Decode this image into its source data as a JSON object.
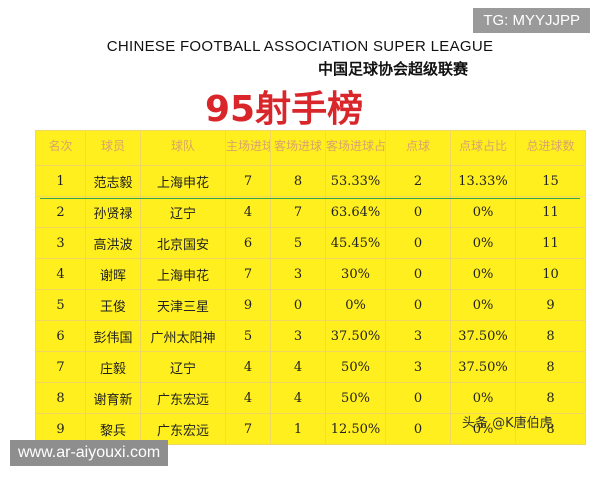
{
  "watermark_top": "TG: MYYJJPP",
  "header": {
    "subtitle_en": "CHINESE FOOTBALL ASSOCIATION SUPER LEAGUE",
    "subtitle_cn": "中国足球协会超级联赛",
    "title": "95射手榜"
  },
  "table": {
    "header": [
      "名次",
      "球员",
      "球队",
      "主场进球",
      "客场进球",
      "客场进球占比",
      "点球",
      "点球占比",
      "总进球数"
    ],
    "rows": [
      [
        "1",
        "范志毅",
        "上海申花",
        "7",
        "8",
        "53.33%",
        "2",
        "13.33%",
        "15"
      ],
      [
        "2",
        "孙贤禄",
        "辽宁",
        "4",
        "7",
        "63.64%",
        "0",
        "0%",
        "11"
      ],
      [
        "3",
        "高洪波",
        "北京国安",
        "6",
        "5",
        "45.45%",
        "0",
        "0%",
        "11"
      ],
      [
        "4",
        "谢晖",
        "上海申花",
        "7",
        "3",
        "30%",
        "0",
        "0%",
        "10"
      ],
      [
        "5",
        "王俊",
        "天津三星",
        "9",
        "0",
        "0%",
        "0",
        "0%",
        "9"
      ],
      [
        "6",
        "彭伟国",
        "广州太阳神",
        "5",
        "3",
        "37.50%",
        "3",
        "37.50%",
        "8"
      ],
      [
        "7",
        "庄毅",
        "辽宁",
        "4",
        "4",
        "50%",
        "3",
        "37.50%",
        "8"
      ],
      [
        "8",
        "谢育新",
        "广东宏远",
        "4",
        "4",
        "50%",
        "0",
        "0%",
        "8"
      ],
      [
        "9",
        "黎兵",
        "广东宏远",
        "7",
        "1",
        "12.50%",
        "0",
        "0%",
        "8"
      ]
    ]
  },
  "watermark_bottom_left": "www.ar-aiyouxi.com",
  "watermark_bottom_right": "头条 @K唐伯虎"
}
